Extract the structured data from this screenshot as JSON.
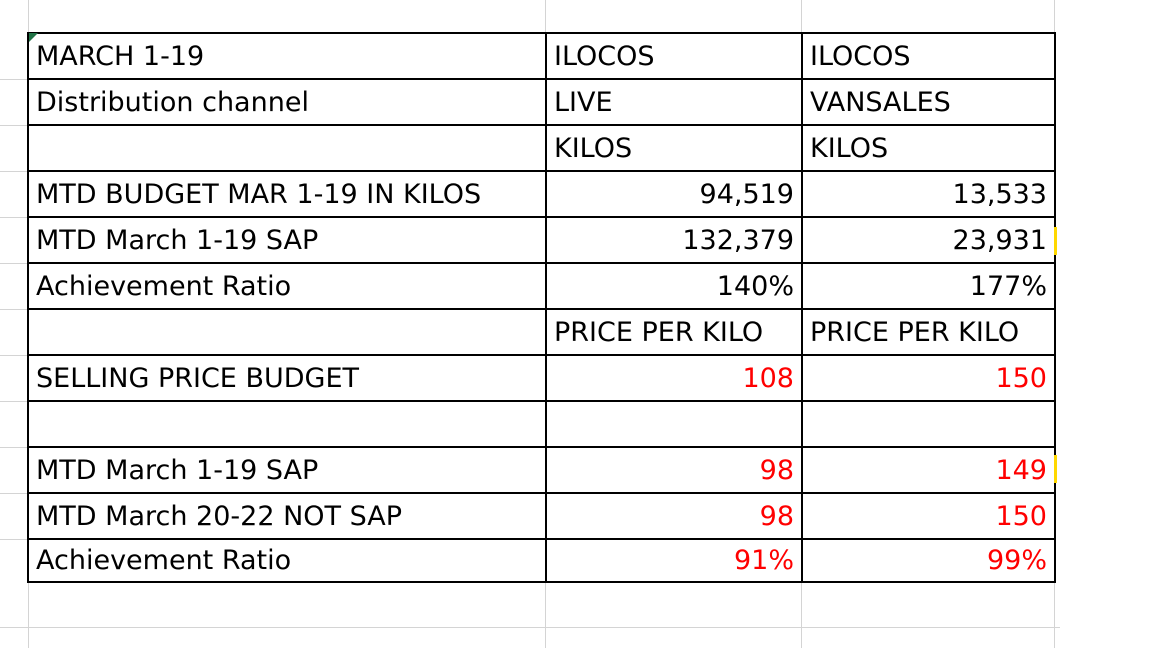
{
  "colors": {
    "grid": "#d4d4d4",
    "border": "#000000",
    "negative_value": "#ff0000",
    "selection_marker": "#217346",
    "highlight_mark": "#ffd800"
  },
  "table": {
    "rows": [
      {
        "label": "MARCH 1-19",
        "c1": "ILOCOS",
        "c2": "ILOCOS"
      },
      {
        "label": "Distribution channel",
        "c1": "LIVE",
        "c2": "VANSALES"
      },
      {
        "label": "",
        "c1": "KILOS",
        "c2": "KILOS"
      },
      {
        "label": "MTD BUDGET MAR 1-19 IN KILOS",
        "c1": "94,519",
        "c2": "13,533"
      },
      {
        "label": "MTD March 1-19 SAP",
        "c1": "132,379",
        "c2": "23,931"
      },
      {
        "label": "Achievement Ratio",
        "c1": "140%",
        "c2": "177%"
      },
      {
        "label": "",
        "c1": "PRICE PER KILO",
        "c2": "PRICE PER KILO"
      },
      {
        "label": "SELLING PRICE BUDGET",
        "c1": "108",
        "c2": "150"
      },
      {
        "label": "",
        "c1": "",
        "c2": ""
      },
      {
        "label": "MTD March 1-19 SAP",
        "c1": "98",
        "c2": "149"
      },
      {
        "label": "MTD March 20-22 NOT SAP",
        "c1": "98",
        "c2": "150"
      },
      {
        "label": "Achievement Ratio",
        "c1": "91%",
        "c2": "99%"
      }
    ]
  }
}
